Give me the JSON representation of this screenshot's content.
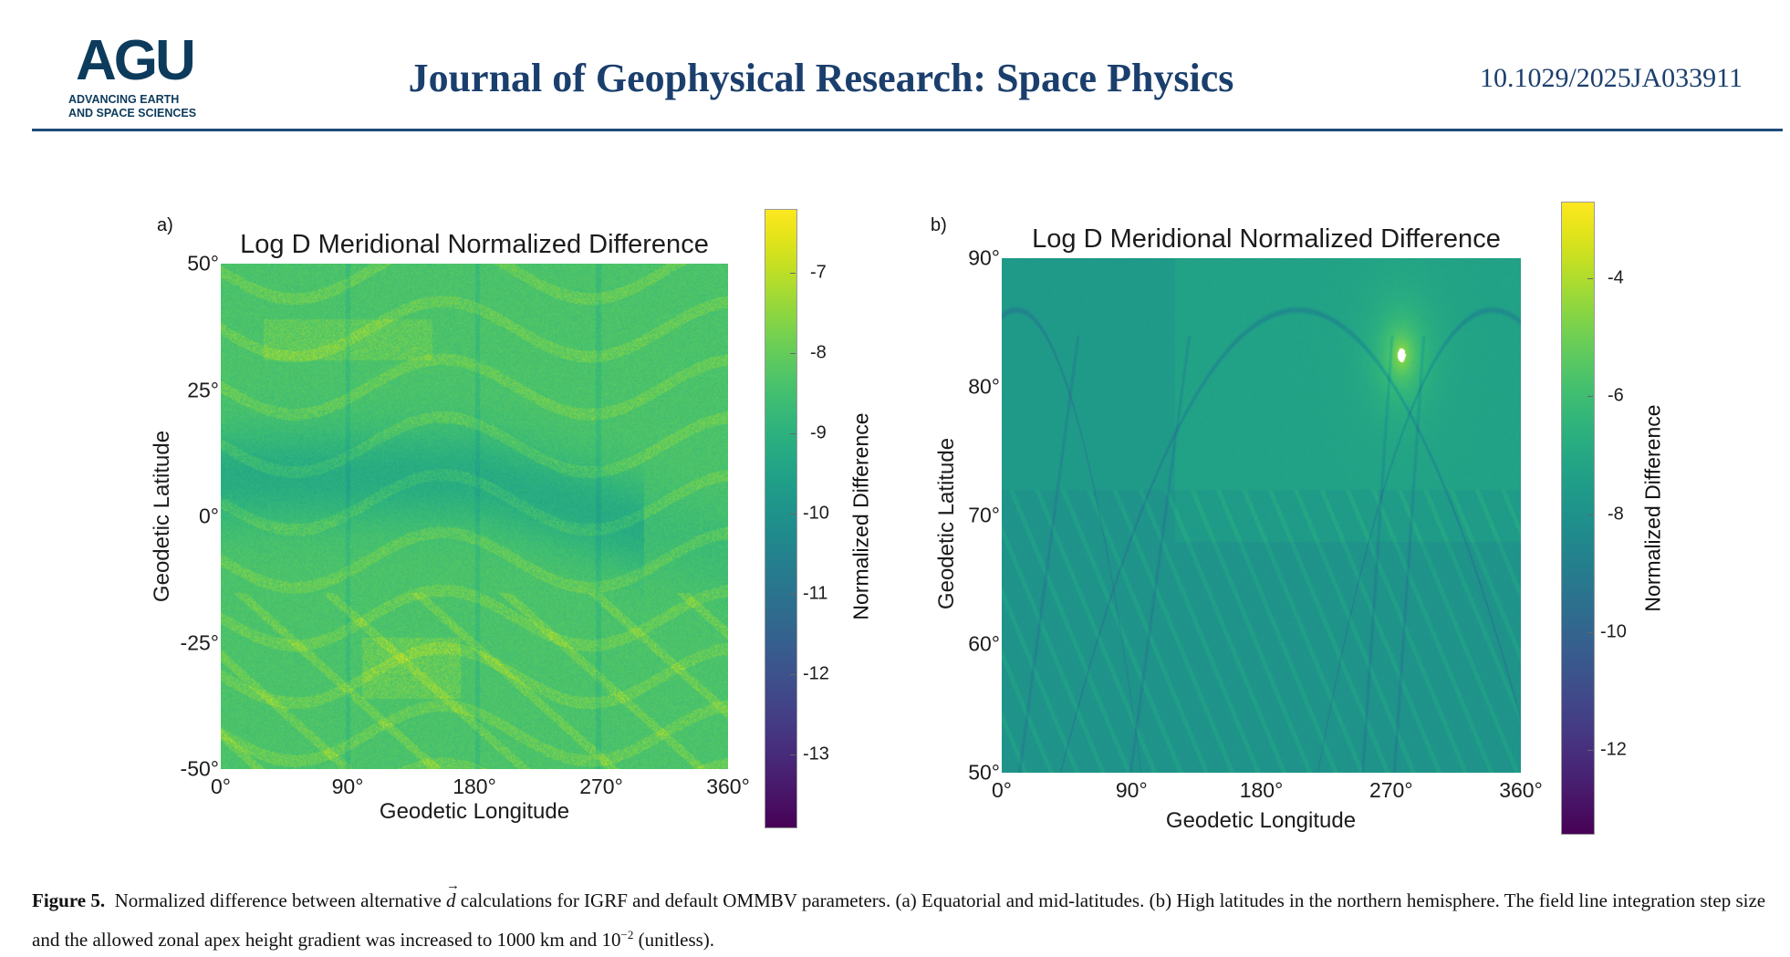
{
  "header": {
    "logo": {
      "wordmark": "AGU",
      "tagline_line1": "ADVANCING EARTH",
      "tagline_line2": "AND SPACE SCIENCES"
    },
    "journal_title": "Journal of Geophysical Research: Space Physics",
    "doi": "10.1029/2025JA033911",
    "colors": {
      "navy": "#1b3f6d",
      "logo_dark": "#0d3b5c",
      "logo_light": "#2f93cf"
    }
  },
  "chart_data": [
    {
      "type": "heatmap",
      "panel_label": "a)",
      "title": "Log D Meridional Normalized Difference",
      "xlabel": "Geodetic Longitude",
      "ylabel": "Geodetic Latitude",
      "xlim": [
        0,
        360
      ],
      "ylim": [
        -50,
        50
      ],
      "xticks": [
        {
          "value": 0,
          "label": "0°"
        },
        {
          "value": 90,
          "label": "90°"
        },
        {
          "value": 180,
          "label": "180°"
        },
        {
          "value": 270,
          "label": "270°"
        },
        {
          "value": 360,
          "label": "360°"
        }
      ],
      "yticks": [
        {
          "value": 50,
          "label": "50°"
        },
        {
          "value": 25,
          "label": "25°"
        },
        {
          "value": 0,
          "label": "0°"
        },
        {
          "value": -25,
          "label": "-25°"
        },
        {
          "value": -50,
          "label": "-50°"
        }
      ],
      "colormap": "viridis",
      "colorbar": {
        "label": "Normalized Difference",
        "range": [
          -13.9,
          -6.2
        ],
        "ticks": [
          {
            "value": -7,
            "label": "-7"
          },
          {
            "value": -8,
            "label": "-8"
          },
          {
            "value": -9,
            "label": "-9"
          },
          {
            "value": -10,
            "label": "-10"
          },
          {
            "value": -11,
            "label": "-11"
          },
          {
            "value": -12,
            "label": "-12"
          },
          {
            "value": -13,
            "label": "-13"
          }
        ]
      }
    },
    {
      "type": "heatmap",
      "panel_label": "b)",
      "title": "Log D Meridional Normalized Difference",
      "xlabel": "Geodetic Longitude",
      "ylabel": "Geodetic Latitude",
      "xlim": [
        0,
        360
      ],
      "ylim": [
        50,
        90
      ],
      "xticks": [
        {
          "value": 0,
          "label": "0°"
        },
        {
          "value": 90,
          "label": "90°"
        },
        {
          "value": 180,
          "label": "180°"
        },
        {
          "value": 270,
          "label": "270°"
        },
        {
          "value": 360,
          "label": "360°"
        }
      ],
      "yticks": [
        {
          "value": 90,
          "label": "90°"
        },
        {
          "value": 80,
          "label": "80°"
        },
        {
          "value": 70,
          "label": "70°"
        },
        {
          "value": 60,
          "label": "60°"
        },
        {
          "value": 50,
          "label": "50°"
        }
      ],
      "colormap": "viridis",
      "colorbar": {
        "label": "Normalized Difference",
        "range": [
          -13.4,
          -2.7
        ],
        "ticks": [
          {
            "value": -4,
            "label": "-4"
          },
          {
            "value": -6,
            "label": "-6"
          },
          {
            "value": -8,
            "label": "-8"
          },
          {
            "value": -10,
            "label": "-10"
          },
          {
            "value": -12,
            "label": "-12"
          }
        ]
      }
    }
  ],
  "caption": {
    "label": "Figure 5.",
    "text_before_symbol": "Normalized difference between alternative",
    "symbol": "d",
    "text_after_symbol": "calculations for IGRF and default OMMBV parameters. (a) Equatorial and mid-latitudes. (b) High latitudes in the northern hemisphere. The field line integration step size and the allowed zonal apex height gradient was increased to 1000 km and 10",
    "superscript": "−2",
    "text_end": "(unitless)."
  }
}
